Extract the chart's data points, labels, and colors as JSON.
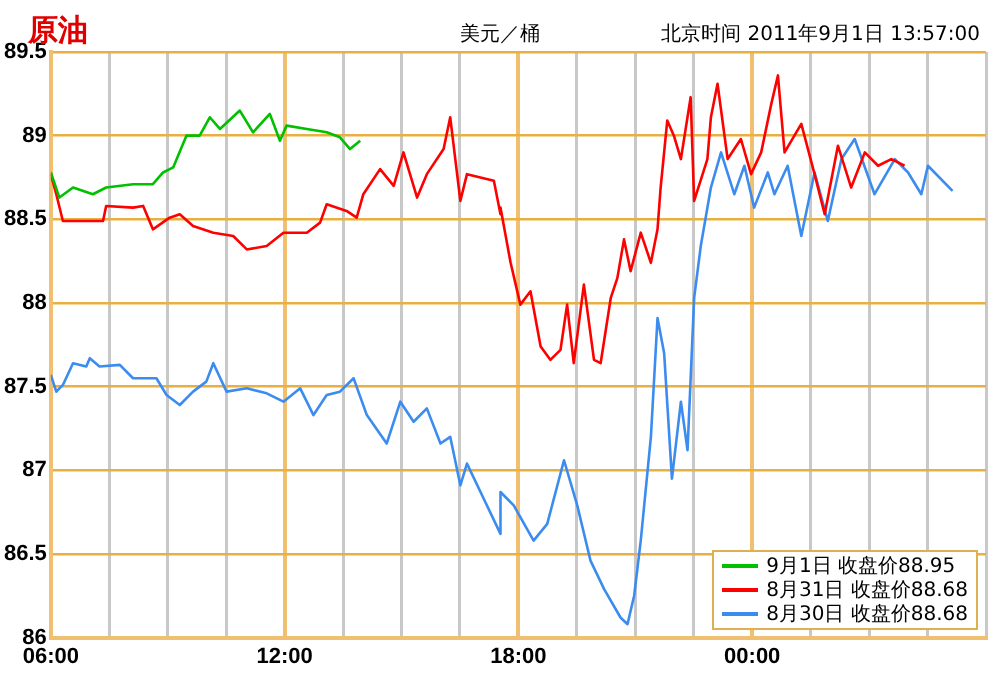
{
  "chart_data": {
    "type": "line",
    "title": "原油",
    "subtitle": "美元／桶",
    "annotations": [
      "北京时间 2011年9月1日 13:57:00"
    ],
    "xlim": [
      6,
      30
    ],
    "xticks": [
      {
        "value": 6,
        "label": "06:00"
      },
      {
        "value": 7.5,
        "label": null
      },
      {
        "value": 9,
        "label": null
      },
      {
        "value": 10.5,
        "label": null
      },
      {
        "value": 12,
        "label": "12:00"
      },
      {
        "value": 13.5,
        "label": null
      },
      {
        "value": 15,
        "label": null
      },
      {
        "value": 16.5,
        "label": null
      },
      {
        "value": 18,
        "label": "18:00"
      },
      {
        "value": 19.5,
        "label": null
      },
      {
        "value": 21,
        "label": null
      },
      {
        "value": 22.5,
        "label": null
      },
      {
        "value": 24,
        "label": "00:00"
      },
      {
        "value": 25.5,
        "label": null
      },
      {
        "value": 27,
        "label": null
      },
      {
        "value": 28.5,
        "label": null
      },
      {
        "value": 30,
        "label": null
      }
    ],
    "ylim": [
      86,
      89.5
    ],
    "yticks": [
      86,
      86.5,
      87,
      87.5,
      88,
      88.5,
      89,
      89.5
    ],
    "grid": true,
    "legend": "bottom right",
    "marker": "none",
    "line_style": "solid",
    "series": [
      {
        "name": "9月1日 收盘价88.95",
        "color": "#00c000",
        "x": [
          6.0,
          6.22,
          6.57,
          7.08,
          7.42,
          8.11,
          8.62,
          8.88,
          9.14,
          9.48,
          9.82,
          10.08,
          10.34,
          10.85,
          11.19,
          11.62,
          11.88,
          12.05,
          12.57,
          13.08,
          13.42,
          13.68,
          13.94
        ],
        "values": [
          88.78,
          88.63,
          88.69,
          88.65,
          88.69,
          88.71,
          88.71,
          88.78,
          88.81,
          89.0,
          89.0,
          89.11,
          89.04,
          89.15,
          89.02,
          89.13,
          88.97,
          89.06,
          89.04,
          89.02,
          88.99,
          88.92,
          88.97
        ]
      },
      {
        "name": "8月31日 收盘价88.68",
        "color": "#ff0000",
        "x": [
          6.0,
          6.14,
          6.31,
          6.91,
          7.34,
          7.42,
          8.11,
          8.37,
          8.62,
          9.05,
          9.31,
          9.65,
          10.17,
          10.68,
          11.03,
          11.54,
          11.97,
          12.57,
          12.91,
          13.08,
          13.59,
          13.85,
          14.02,
          14.45,
          14.8,
          15.05,
          15.4,
          15.65,
          16.08,
          16.25,
          16.51,
          16.68,
          17.37,
          17.54,
          17.54,
          17.8,
          18.05,
          18.31,
          18.57,
          18.82,
          19.08,
          19.25,
          19.42,
          19.68,
          19.94,
          20.11,
          20.37,
          20.54,
          20.71,
          20.88,
          21.14,
          21.4,
          21.57,
          21.65,
          21.82,
          21.99,
          22.17,
          22.42,
          22.51,
          22.85,
          22.94,
          23.11,
          23.37,
          23.71,
          23.97,
          24.23,
          24.49,
          24.66,
          24.83,
          25.26,
          25.6,
          25.86,
          26.2,
          26.54,
          26.89,
          27.23,
          27.57,
          27.74,
          27.91
        ],
        "values": [
          88.77,
          88.65,
          88.49,
          88.49,
          88.49,
          88.58,
          88.57,
          88.58,
          88.44,
          88.51,
          88.53,
          88.46,
          88.42,
          88.4,
          88.32,
          88.34,
          88.42,
          88.42,
          88.48,
          88.59,
          88.55,
          88.51,
          88.65,
          88.8,
          88.7,
          88.9,
          88.63,
          88.77,
          88.92,
          89.11,
          88.61,
          88.77,
          88.73,
          88.53,
          88.57,
          88.24,
          87.99,
          88.07,
          87.74,
          87.66,
          87.72,
          87.99,
          87.64,
          88.11,
          87.66,
          87.64,
          88.03,
          88.15,
          88.38,
          88.19,
          88.42,
          88.24,
          88.44,
          88.69,
          89.09,
          89.0,
          88.86,
          89.23,
          88.61,
          88.86,
          89.11,
          89.31,
          88.86,
          88.98,
          88.77,
          88.9,
          89.19,
          89.36,
          88.9,
          89.07,
          88.77,
          88.53,
          88.94,
          88.69,
          88.9,
          88.82,
          88.86,
          88.84,
          88.82
        ]
      },
      {
        "name": "8月30日 收盘价88.68",
        "color": "#3c8cf0",
        "x": [
          6.0,
          6.14,
          6.31,
          6.57,
          6.91,
          7.0,
          7.25,
          7.77,
          8.11,
          8.71,
          8.97,
          9.31,
          9.65,
          9.99,
          10.17,
          10.51,
          11.03,
          11.54,
          11.97,
          12.4,
          12.74,
          13.08,
          13.42,
          13.77,
          14.11,
          14.62,
          14.97,
          15.31,
          15.65,
          16.0,
          16.25,
          16.51,
          16.68,
          17.11,
          17.54,
          17.54,
          17.88,
          18.39,
          18.74,
          19.17,
          19.51,
          19.85,
          20.2,
          20.62,
          20.8,
          20.97,
          21.14,
          21.4,
          21.57,
          21.74,
          21.94,
          22.17,
          22.34,
          22.51,
          22.68,
          22.94,
          23.2,
          23.54,
          23.8,
          24.05,
          24.4,
          24.57,
          24.91,
          25.26,
          25.6,
          25.94,
          26.29,
          26.63,
          27.14,
          27.66,
          28.0,
          28.34,
          28.51,
          29.14
        ],
        "values": [
          87.57,
          87.47,
          87.51,
          87.64,
          87.62,
          87.67,
          87.62,
          87.63,
          87.55,
          87.55,
          87.45,
          87.39,
          87.47,
          87.53,
          87.64,
          87.47,
          87.49,
          87.46,
          87.41,
          87.49,
          87.33,
          87.45,
          87.47,
          87.55,
          87.33,
          87.16,
          87.41,
          87.29,
          87.37,
          87.16,
          87.2,
          86.91,
          87.04,
          86.83,
          86.62,
          86.87,
          86.79,
          86.58,
          86.68,
          87.06,
          86.79,
          86.46,
          86.29,
          86.12,
          86.08,
          86.25,
          86.58,
          87.2,
          87.91,
          87.7,
          86.95,
          87.41,
          87.12,
          88.03,
          88.34,
          88.69,
          88.9,
          88.65,
          88.82,
          88.57,
          88.78,
          88.65,
          88.82,
          88.4,
          88.78,
          88.49,
          88.86,
          88.98,
          88.65,
          88.86,
          88.78,
          88.65,
          88.82,
          88.67
        ]
      }
    ]
  }
}
